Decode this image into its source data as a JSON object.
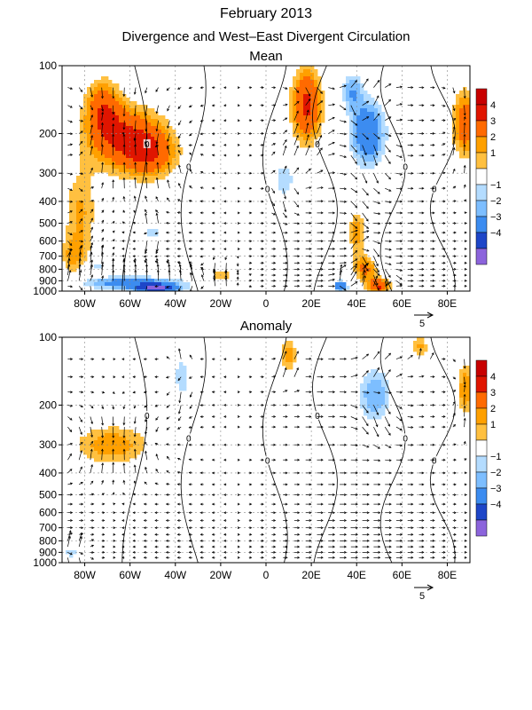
{
  "figure": {
    "title": "February 2013",
    "subtitle": "Divergence and West–East Divergent Circulation"
  },
  "colors": {
    "pos1": "#ffc040",
    "pos2": "#ffa000",
    "pos3": "#ff6a00",
    "pos4": "#e01500",
    "neg1": "#b4dcff",
    "neg2": "#7dbeff",
    "neg3": "#3c8cf0",
    "neg4": "#1e46c8",
    "neg5": "#8c64dc",
    "pos5": "#c80000"
  },
  "chart_data": [
    {
      "type": "heatmap",
      "title": "Mean",
      "x_ticks": [
        "80W",
        "60W",
        "40W",
        "20W",
        "0",
        "20E",
        "40E",
        "60E",
        "80E"
      ],
      "x_tick_values": [
        -80,
        -60,
        -40,
        -20,
        0,
        20,
        40,
        60,
        80
      ],
      "xlim": [
        -90,
        90
      ],
      "y_ticks": [
        "100",
        "200",
        "300",
        "400",
        "500",
        "600",
        "700",
        "800",
        "900",
        "1000"
      ],
      "y_tick_values": [
        100,
        200,
        300,
        400,
        500,
        600,
        700,
        800,
        900,
        1000
      ],
      "ylim": [
        1000,
        100
      ],
      "y_scale": "log",
      "grid": true,
      "colorbar": {
        "labels": [
          "4",
          "3",
          "2",
          "1",
          "−1",
          "−2",
          "−3",
          "−4"
        ],
        "placement": "right"
      },
      "vector_reference_label": "5",
      "contour_label": "0",
      "blobs": [
        {
          "lon": -62,
          "p": 210,
          "w": 18,
          "h": 0.35,
          "v": 3.0
        },
        {
          "lon": -72,
          "p": 150,
          "w": 8,
          "h": 0.3,
          "v": 2.2
        },
        {
          "lon": -50,
          "p": 250,
          "w": 12,
          "h": 0.25,
          "v": 1.8
        },
        {
          "lon": -82,
          "p": 450,
          "w": 8,
          "h": 0.45,
          "v": 1.6
        },
        {
          "lon": -85,
          "p": 700,
          "w": 6,
          "h": 0.2,
          "v": 1.4
        },
        {
          "lon": 18,
          "p": 150,
          "w": 7,
          "h": 0.4,
          "v": 3.3
        },
        {
          "lon": 45,
          "p": 200,
          "w": 8,
          "h": 0.35,
          "v": -3.0
        },
        {
          "lon": 38,
          "p": 130,
          "w": 5,
          "h": 0.2,
          "v": -1.8
        },
        {
          "lon": 88,
          "p": 180,
          "w": 6,
          "h": 0.35,
          "v": 2.8
        },
        {
          "lon": 8,
          "p": 320,
          "w": 5,
          "h": 0.2,
          "v": -1.5
        },
        {
          "lon": 40,
          "p": 550,
          "w": 4,
          "h": 0.25,
          "v": 1.8
        },
        {
          "lon": 44,
          "p": 800,
          "w": 5,
          "h": 0.15,
          "v": 2.2
        },
        {
          "lon": 50,
          "p": 950,
          "w": 5,
          "h": 0.08,
          "v": 3.0
        },
        {
          "lon": -60,
          "p": 920,
          "w": 25,
          "h": 0.07,
          "v": -2.5
        },
        {
          "lon": -48,
          "p": 980,
          "w": 10,
          "h": 0.05,
          "v": -3.5
        },
        {
          "lon": 33,
          "p": 950,
          "w": 3,
          "h": 0.06,
          "v": -3.2
        },
        {
          "lon": -20,
          "p": 850,
          "w": 5,
          "h": 0.08,
          "v": 1.6
        },
        {
          "lon": -50,
          "p": 550,
          "w": 3,
          "h": 0.08,
          "v": -1.5
        },
        {
          "lon": -75,
          "p": 780,
          "w": 5,
          "h": 0.06,
          "v": -1.4
        }
      ]
    },
    {
      "type": "heatmap",
      "title": "Anomaly",
      "x_ticks": [
        "80W",
        "60W",
        "40W",
        "20W",
        "0",
        "20E",
        "40E",
        "60E",
        "80E"
      ],
      "x_tick_values": [
        -80,
        -60,
        -40,
        -20,
        0,
        20,
        40,
        60,
        80
      ],
      "xlim": [
        -90,
        90
      ],
      "y_ticks": [
        "100",
        "200",
        "300",
        "400",
        "500",
        "600",
        "700",
        "800",
        "900",
        "1000"
      ],
      "y_tick_values": [
        100,
        200,
        300,
        400,
        500,
        600,
        700,
        800,
        900,
        1000
      ],
      "ylim": [
        1000,
        100
      ],
      "y_scale": "log",
      "grid": true,
      "colorbar": {
        "labels": [
          "4",
          "3",
          "2",
          "1",
          "−1",
          "−2",
          "−3",
          "−4"
        ],
        "placement": "right"
      },
      "vector_reference_label": "5",
      "contour_label": "0",
      "blobs": [
        {
          "lon": -68,
          "p": 300,
          "w": 18,
          "h": 0.22,
          "v": 1.9
        },
        {
          "lon": 10,
          "p": 120,
          "w": 4,
          "h": 0.18,
          "v": 1.8
        },
        {
          "lon": -37,
          "p": 150,
          "w": 4,
          "h": 0.22,
          "v": -1.5
        },
        {
          "lon": 48,
          "p": 180,
          "w": 8,
          "h": 0.3,
          "v": -2.0
        },
        {
          "lon": 88,
          "p": 170,
          "w": 4,
          "h": 0.3,
          "v": 2.0
        },
        {
          "lon": 68,
          "p": 110,
          "w": 4,
          "h": 0.12,
          "v": 1.6
        },
        {
          "lon": -86,
          "p": 900,
          "w": 5,
          "h": 0.06,
          "v": -1.4
        }
      ]
    }
  ]
}
